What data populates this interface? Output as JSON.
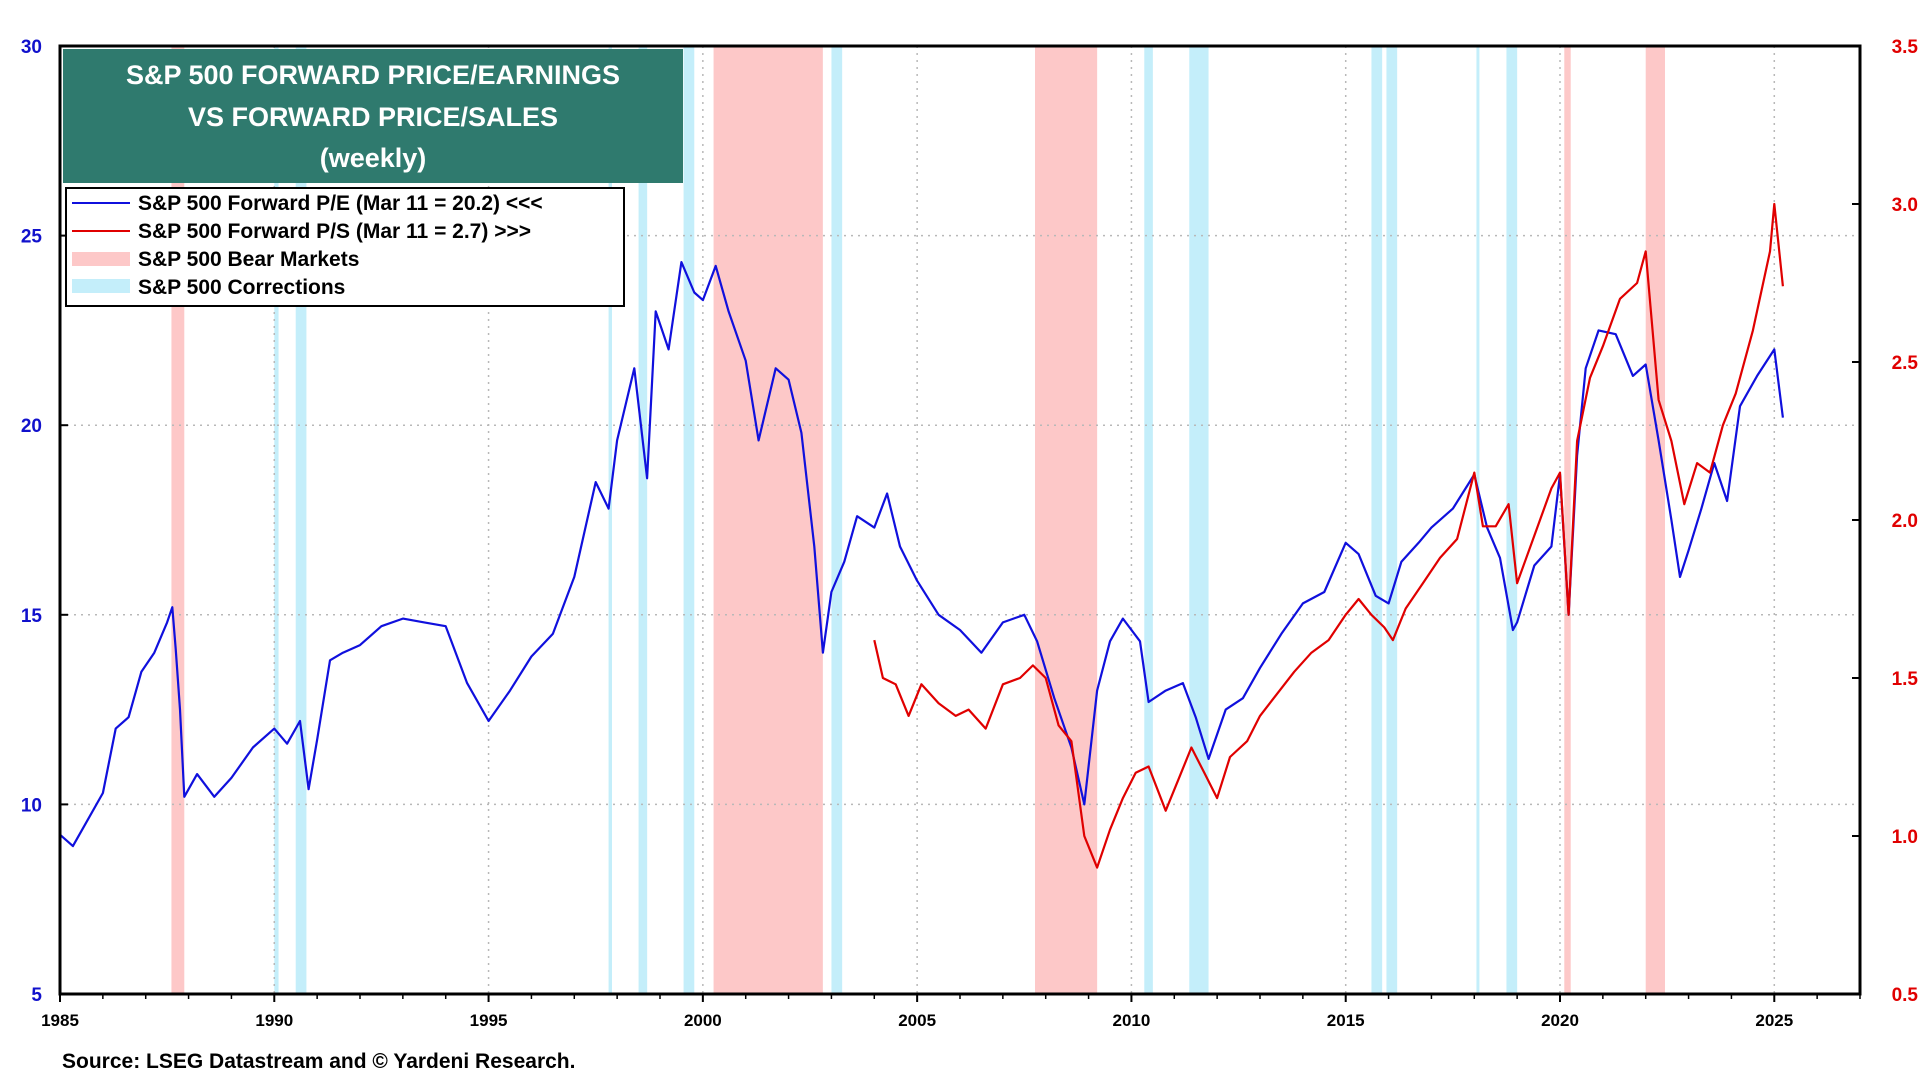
{
  "chart_data": {
    "type": "line",
    "title": [
      "S&P 500 FORWARD PRICE/EARNINGS",
      "VS FORWARD PRICE/SALES",
      "(weekly)"
    ],
    "source": "Source: LSEG Datastream and © Yardeni Research.",
    "xlim": [
      1985,
      2027
    ],
    "x_ticks": [
      "1985",
      "1990",
      "1995",
      "2000",
      "2005",
      "2010",
      "2015",
      "2020",
      "2025"
    ],
    "ylim_left": [
      5,
      30
    ],
    "left_ticks": [
      "5",
      "10",
      "15",
      "20",
      "25",
      "30"
    ],
    "ylim_right": [
      0.5,
      3.5
    ],
    "right_ticks": [
      "0.5",
      "1.0",
      "1.5",
      "2.0",
      "2.5",
      "3.0",
      "3.5"
    ],
    "grid": true,
    "legend_position": "top-left",
    "legend": [
      {
        "label": "S&P 500 Forward P/E (Mar 11 = 20.2) <<<",
        "kind": "line",
        "color": "#1010dd"
      },
      {
        "label": "S&P 500 Forward P/S (Mar 11 = 2.7) >>>",
        "kind": "line",
        "color": "#e00000"
      },
      {
        "label": "S&P 500 Bear Markets",
        "kind": "band",
        "color": "#fdc8c8"
      },
      {
        "label": "S&P 500 Corrections",
        "kind": "band",
        "color": "#c4eefa"
      }
    ],
    "bear_markets": [
      [
        1987.6,
        1987.9
      ],
      [
        2000.25,
        2002.8
      ],
      [
        2007.75,
        2009.2
      ],
      [
        2020.1,
        2020.25
      ],
      [
        2022.0,
        2022.45
      ]
    ],
    "corrections": [
      [
        1990.0,
        1990.1
      ],
      [
        1990.5,
        1990.75
      ],
      [
        1997.8,
        1997.88
      ],
      [
        1998.5,
        1998.7
      ],
      [
        1999.55,
        1999.8
      ],
      [
        2003.0,
        2003.25
      ],
      [
        2010.3,
        2010.5
      ],
      [
        2011.35,
        2011.8
      ],
      [
        2015.6,
        2015.85
      ],
      [
        2015.95,
        2016.2
      ],
      [
        2018.05,
        2018.1
      ],
      [
        2018.75,
        2019.0
      ]
    ],
    "series": [
      {
        "name": "S&P 500 Forward P/E",
        "axis": "left",
        "color": "#1010dd",
        "x": [
          1985.0,
          1985.3,
          1985.6,
          1986.0,
          1986.3,
          1986.6,
          1986.9,
          1987.2,
          1987.5,
          1987.62,
          1987.7,
          1987.8,
          1987.9,
          1988.2,
          1988.6,
          1989.0,
          1989.5,
          1990.0,
          1990.3,
          1990.6,
          1990.8,
          1991.0,
          1991.3,
          1991.6,
          1992.0,
          1992.5,
          1993.0,
          1993.5,
          1994.0,
          1994.5,
          1995.0,
          1995.5,
          1996.0,
          1996.5,
          1997.0,
          1997.5,
          1997.8,
          1998.0,
          1998.4,
          1998.7,
          1998.9,
          1999.2,
          1999.5,
          1999.8,
          2000.0,
          2000.3,
          2000.6,
          2001.0,
          2001.3,
          2001.7,
          2002.0,
          2002.3,
          2002.6,
          2002.8,
          2003.0,
          2003.3,
          2003.6,
          2004.0,
          2004.3,
          2004.6,
          2005.0,
          2005.5,
          2006.0,
          2006.5,
          2007.0,
          2007.5,
          2007.8,
          2008.2,
          2008.6,
          2008.9,
          2009.2,
          2009.5,
          2009.8,
          2010.2,
          2010.4,
          2010.8,
          2011.2,
          2011.5,
          2011.8,
          2012.2,
          2012.6,
          2013.0,
          2013.5,
          2014.0,
          2014.5,
          2015.0,
          2015.3,
          2015.7,
          2016.0,
          2016.3,
          2016.7,
          2017.0,
          2017.5,
          2018.0,
          2018.3,
          2018.6,
          2018.9,
          2019.0,
          2019.4,
          2019.8,
          2020.0,
          2020.2,
          2020.4,
          2020.6,
          2020.9,
          2021.3,
          2021.7,
          2022.0,
          2022.3,
          2022.6,
          2022.8,
          2023.0,
          2023.3,
          2023.6,
          2023.9,
          2024.2,
          2024.6,
          2025.0,
          2025.2
        ],
        "values": [
          9.2,
          8.9,
          9.5,
          10.3,
          12.0,
          12.3,
          13.5,
          14.0,
          14.8,
          15.2,
          14.1,
          12.5,
          10.2,
          10.8,
          10.2,
          10.7,
          11.5,
          12.0,
          11.6,
          12.2,
          10.4,
          11.7,
          13.8,
          14.0,
          14.2,
          14.7,
          14.9,
          14.8,
          14.7,
          13.2,
          12.2,
          13.0,
          13.9,
          14.5,
          16.0,
          18.5,
          17.8,
          19.6,
          21.5,
          18.6,
          23.0,
          22.0,
          24.3,
          23.5,
          23.3,
          24.2,
          23.0,
          21.7,
          19.6,
          21.5,
          21.2,
          19.8,
          16.8,
          14.0,
          15.6,
          16.4,
          17.6,
          17.3,
          18.2,
          16.8,
          15.9,
          15.0,
          14.6,
          14.0,
          14.8,
          15.0,
          14.3,
          12.8,
          11.5,
          10.0,
          13.0,
          14.3,
          14.9,
          14.3,
          12.7,
          13.0,
          13.2,
          12.3,
          11.2,
          12.5,
          12.8,
          13.6,
          14.5,
          15.3,
          15.6,
          16.9,
          16.6,
          15.5,
          15.3,
          16.4,
          16.9,
          17.3,
          17.8,
          18.7,
          17.3,
          16.5,
          14.6,
          14.8,
          16.3,
          16.8,
          18.7,
          15.0,
          19.2,
          21.5,
          22.5,
          22.4,
          21.3,
          21.6,
          19.6,
          17.5,
          16.0,
          16.7,
          17.8,
          19.0,
          18.0,
          20.5,
          21.3,
          22.0,
          20.2
        ]
      },
      {
        "name": "S&P 500 Forward P/S",
        "axis": "right",
        "color": "#e00000",
        "x": [
          2004.0,
          2004.2,
          2004.5,
          2004.8,
          2005.1,
          2005.5,
          2005.9,
          2006.2,
          2006.6,
          2007.0,
          2007.4,
          2007.7,
          2008.0,
          2008.3,
          2008.6,
          2008.9,
          2009.2,
          2009.5,
          2009.8,
          2010.1,
          2010.4,
          2010.8,
          2011.1,
          2011.4,
          2011.7,
          2012.0,
          2012.3,
          2012.7,
          2013.0,
          2013.4,
          2013.8,
          2014.2,
          2014.6,
          2015.0,
          2015.3,
          2015.6,
          2015.9,
          2016.1,
          2016.4,
          2016.8,
          2017.2,
          2017.6,
          2018.0,
          2018.2,
          2018.5,
          2018.8,
          2019.0,
          2019.4,
          2019.8,
          2020.0,
          2020.2,
          2020.4,
          2020.7,
          2021.0,
          2021.4,
          2021.8,
          2022.0,
          2022.3,
          2022.6,
          2022.9,
          2023.2,
          2023.5,
          2023.8,
          2024.1,
          2024.5,
          2024.9,
          2025.0,
          2025.2
        ],
        "values": [
          1.62,
          1.5,
          1.48,
          1.38,
          1.48,
          1.42,
          1.38,
          1.4,
          1.34,
          1.48,
          1.5,
          1.54,
          1.5,
          1.35,
          1.3,
          1.0,
          0.9,
          1.02,
          1.12,
          1.2,
          1.22,
          1.08,
          1.18,
          1.28,
          1.2,
          1.12,
          1.25,
          1.3,
          1.38,
          1.45,
          1.52,
          1.58,
          1.62,
          1.7,
          1.75,
          1.7,
          1.66,
          1.62,
          1.72,
          1.8,
          1.88,
          1.94,
          2.15,
          1.98,
          1.98,
          2.05,
          1.8,
          1.95,
          2.1,
          2.15,
          1.7,
          2.25,
          2.45,
          2.55,
          2.7,
          2.75,
          2.85,
          2.38,
          2.25,
          2.05,
          2.18,
          2.15,
          2.3,
          2.4,
          2.6,
          2.85,
          3.0,
          2.74
        ]
      }
    ]
  }
}
